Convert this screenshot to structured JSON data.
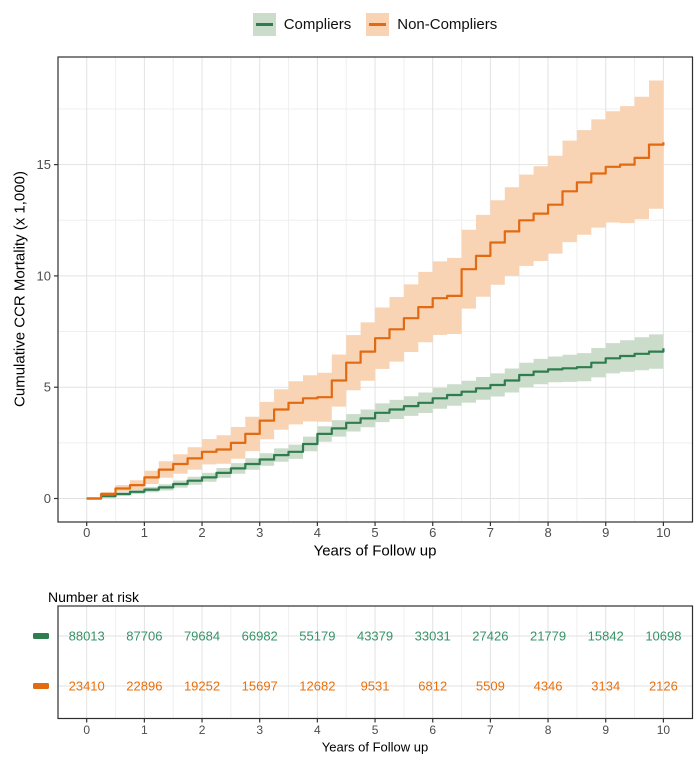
{
  "legend": {
    "items": [
      {
        "label": "Compliers",
        "line_color": "#2e7d4e",
        "fill_color": "#cbdccb"
      },
      {
        "label": "Non-Compliers",
        "line_color": "#e26a11",
        "fill_color": "#f8d3b4"
      }
    ]
  },
  "chart_data": {
    "type": "line",
    "subtype": "step-cumulative-incidence-with-ci-bands",
    "title": "",
    "xlabel": "Years of Follow up",
    "ylabel": "Cumulative CCR Mortality (x 1,000)",
    "xlim": [
      -0.5,
      10.5
    ],
    "ylim": [
      -1.05,
      19.9
    ],
    "x_ticks": [
      0,
      1,
      2,
      3,
      4,
      5,
      6,
      7,
      8,
      9,
      10
    ],
    "x_minor": [
      0.5,
      1.5,
      2.5,
      3.5,
      4.5,
      5.5,
      6.5,
      7.5,
      8.5,
      9.5
    ],
    "y_ticks": [
      0,
      5,
      10,
      15
    ],
    "y_minor": [
      2.5,
      7.5,
      12.5,
      17.5
    ],
    "grid": true,
    "legend_position": "top",
    "series": [
      {
        "name": "Compliers",
        "color": "#2e7d4e",
        "band_color": "#cbdccb",
        "x": [
          0,
          0.25,
          0.5,
          0.75,
          1,
          1.25,
          1.5,
          1.75,
          2,
          2.25,
          2.5,
          2.75,
          3,
          3.25,
          3.5,
          3.75,
          4,
          4.25,
          4.5,
          4.75,
          5,
          5.25,
          5.5,
          5.75,
          6,
          6.25,
          6.5,
          6.75,
          7,
          7.25,
          7.5,
          7.75,
          8,
          8.25,
          8.5,
          8.75,
          9,
          9.25,
          9.5,
          9.75,
          10
        ],
        "est": [
          0,
          0.1,
          0.2,
          0.3,
          0.4,
          0.5,
          0.65,
          0.8,
          0.95,
          1.15,
          1.35,
          1.55,
          1.75,
          1.95,
          2.1,
          2.45,
          2.9,
          3.15,
          3.4,
          3.6,
          3.85,
          4.0,
          4.15,
          4.3,
          4.5,
          4.65,
          4.8,
          4.95,
          5.1,
          5.3,
          5.55,
          5.7,
          5.8,
          5.85,
          5.9,
          6.1,
          6.3,
          6.4,
          6.5,
          6.6,
          6.75
        ],
        "lo": [
          0,
          0.05,
          0.12,
          0.2,
          0.28,
          0.36,
          0.49,
          0.62,
          0.75,
          0.93,
          1.11,
          1.29,
          1.47,
          1.65,
          1.78,
          2.12,
          2.55,
          2.78,
          3.01,
          3.2,
          3.43,
          3.57,
          3.71,
          3.84,
          4.03,
          4.17,
          4.31,
          4.44,
          4.58,
          4.76,
          5.0,
          5.13,
          5.22,
          5.24,
          5.27,
          5.44,
          5.62,
          5.69,
          5.76,
          5.83,
          5.95
        ],
        "hi": [
          0.02,
          0.15,
          0.28,
          0.4,
          0.52,
          0.64,
          0.81,
          0.98,
          1.15,
          1.37,
          1.59,
          1.81,
          2.03,
          2.25,
          2.42,
          2.78,
          3.25,
          3.52,
          3.79,
          4.0,
          4.27,
          4.43,
          4.59,
          4.76,
          4.97,
          5.13,
          5.29,
          5.46,
          5.62,
          5.84,
          6.1,
          6.27,
          6.38,
          6.46,
          6.53,
          6.76,
          6.98,
          7.11,
          7.24,
          7.37,
          7.55
        ]
      },
      {
        "name": "Non-Compliers",
        "color": "#e26a11",
        "band_color": "#f8d3b4",
        "x": [
          0,
          0.25,
          0.5,
          0.75,
          1,
          1.25,
          1.5,
          1.75,
          2,
          2.25,
          2.5,
          2.75,
          3,
          3.25,
          3.5,
          3.75,
          4,
          4.25,
          4.5,
          4.75,
          5,
          5.25,
          5.5,
          5.75,
          6,
          6.25,
          6.5,
          6.75,
          7,
          7.25,
          7.5,
          7.75,
          8,
          8.25,
          8.5,
          8.75,
          9,
          9.25,
          9.5,
          9.75,
          10
        ],
        "est": [
          0,
          0.2,
          0.45,
          0.6,
          0.95,
          1.3,
          1.55,
          1.8,
          2.1,
          2.2,
          2.5,
          2.9,
          3.5,
          4.0,
          4.3,
          4.5,
          4.55,
          5.3,
          6.1,
          6.6,
          7.2,
          7.6,
          8.1,
          8.6,
          9.0,
          9.1,
          10.3,
          10.9,
          11.5,
          12.0,
          12.5,
          12.8,
          13.2,
          13.8,
          14.2,
          14.6,
          14.9,
          15.0,
          15.3,
          15.9,
          16.0
        ],
        "lo": [
          0,
          0.11,
          0.3,
          0.38,
          0.65,
          0.93,
          1.11,
          1.3,
          1.53,
          1.56,
          1.79,
          2.13,
          2.66,
          3.09,
          3.33,
          3.46,
          3.45,
          4.13,
          4.86,
          5.29,
          5.82,
          6.15,
          6.58,
          7.02,
          7.35,
          7.39,
          8.53,
          9.06,
          9.6,
          10.02,
          10.45,
          10.67,
          11.0,
          11.52,
          11.85,
          12.17,
          12.4,
          12.37,
          12.55,
          13.02,
          13.0
        ],
        "hi": [
          0.02,
          0.29,
          0.6,
          0.82,
          1.25,
          1.67,
          1.99,
          2.3,
          2.67,
          2.84,
          3.21,
          3.67,
          4.34,
          4.91,
          5.27,
          5.54,
          5.65,
          6.47,
          7.34,
          7.91,
          8.58,
          9.05,
          9.62,
          10.18,
          10.65,
          10.81,
          12.07,
          12.74,
          13.4,
          13.98,
          14.55,
          14.93,
          15.4,
          16.08,
          16.55,
          17.03,
          17.4,
          17.63,
          18.05,
          18.78,
          19.0
        ]
      }
    ]
  },
  "risk_table": {
    "title": "Number at risk",
    "xlabel": "Years of Follow up",
    "x_ticks": [
      0,
      1,
      2,
      3,
      4,
      5,
      6,
      7,
      8,
      9,
      10
    ],
    "rows": [
      {
        "name": "Compliers",
        "dash_color": "#2e7d4e",
        "text_color": "#379367",
        "values": [
          88013,
          87706,
          79684,
          66982,
          55179,
          43379,
          33031,
          27426,
          21779,
          15842,
          10698
        ]
      },
      {
        "name": "Non-Compliers",
        "dash_color": "#e26a11",
        "text_color": "#e8700e",
        "values": [
          23410,
          22896,
          19252,
          15697,
          12682,
          9531,
          6812,
          5509,
          4346,
          3134,
          2126
        ]
      }
    ]
  },
  "colors": {
    "grid_major": "#e2e2e2",
    "grid_minor": "#efefef",
    "panel_border": "#2e2e2e",
    "tick_mark": "#333333",
    "tick_label": "#4d4d4d",
    "background": "#ffffff"
  }
}
